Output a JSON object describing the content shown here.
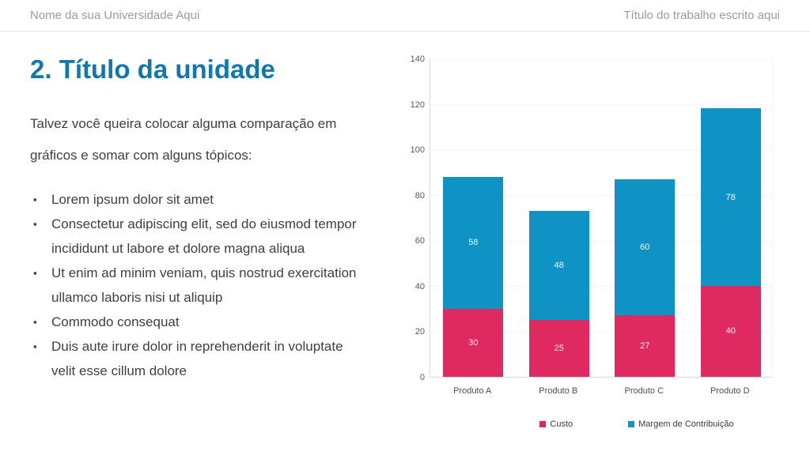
{
  "slide": {
    "header": {
      "left": "Nome da sua Universidade Aqui",
      "right": "Título do trabalho escrito aqui"
    },
    "title": "2. Título da unidade",
    "intro": "Talvez você queira colocar alguma comparação em gráficos e somar com alguns tópicos:",
    "bullets": [
      "Lorem ipsum dolor sit amet",
      "Consectetur adipiscing elit, sed do eiusmod tempor incididunt ut labore et dolore magna aliqua",
      "Ut enim ad minim veniam, quis nostrud exercitation ullamco laboris nisi ut aliquip",
      "Commodo consequat",
      "Duis aute irure dolor in reprehenderit in voluptate velit esse cillum dolore"
    ]
  },
  "chart_data": {
    "type": "bar",
    "stacked": true,
    "categories": [
      "Produto A",
      "Produto B",
      "Produto C",
      "Produto D"
    ],
    "series": [
      {
        "name": "Custo",
        "color": "#de2a60",
        "values": [
          30,
          25,
          27,
          40
        ]
      },
      {
        "name": "Margem de Contribuição",
        "color": "#0f93c5",
        "values": [
          58,
          48,
          60,
          78
        ]
      }
    ],
    "totals": [
      88,
      73,
      87,
      118
    ],
    "y_ticks": [
      0,
      20,
      40,
      60,
      80,
      100,
      120,
      140
    ],
    "ylim": [
      0,
      140
    ],
    "grid": true,
    "legend_position": "bottom",
    "data_labels": true
  },
  "colors": {
    "title_blue": "#1177af",
    "header_gray": "#9b9b9b",
    "body_text": "#3f3f3f",
    "custo_red": "#de2a60",
    "margem_blue": "#0f93c5"
  }
}
